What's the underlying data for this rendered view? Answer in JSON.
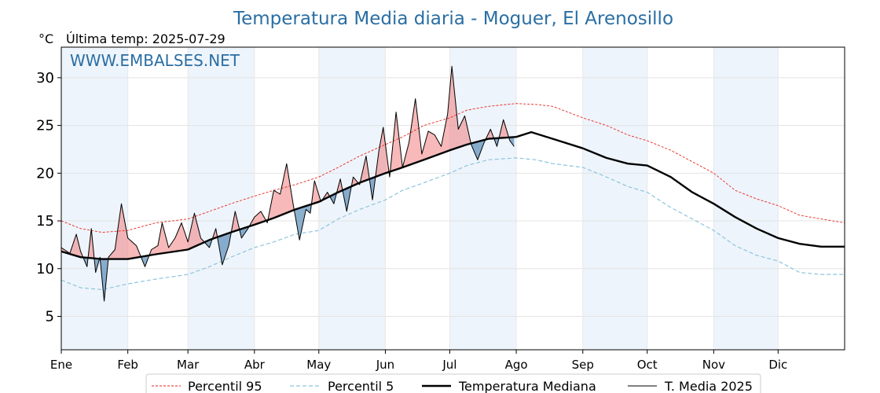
{
  "title": "Temperatura Media diaria - Moguer, El Arenosillo",
  "unit_label": "°C",
  "subtitle": "Última temp: 2025-07-29",
  "watermark": "WWW.EMBALSES.NET",
  "chart_data": {
    "type": "line",
    "title": "Temperatura Media diaria - Moguer, El Arenosillo",
    "xlabel": "",
    "ylabel": "°C",
    "ylim": [
      1.5,
      33.2
    ],
    "xlim": [
      1,
      366
    ],
    "yticks": [
      5,
      10,
      15,
      20,
      25,
      30
    ],
    "xticks": [
      {
        "day": 1,
        "label": "Ene"
      },
      {
        "day": 32,
        "label": "Feb"
      },
      {
        "day": 60,
        "label": "Mar"
      },
      {
        "day": 91,
        "label": "Abr"
      },
      {
        "day": 121,
        "label": "May"
      },
      {
        "day": 152,
        "label": "Jun"
      },
      {
        "day": 182,
        "label": "Jul"
      },
      {
        "day": 213,
        "label": "Ago"
      },
      {
        "day": 244,
        "label": "Sep"
      },
      {
        "day": 274,
        "label": "Oct"
      },
      {
        "day": 305,
        "label": "Nov"
      },
      {
        "day": 335,
        "label": "Dic"
      }
    ],
    "grid": true,
    "legend_position": "bottom",
    "colors": {
      "p95": "#e8251e",
      "p5": "#8cc5dc",
      "median": "#000000",
      "current": "#000000",
      "fill_above": "#f08080",
      "fill_below": "#4f86b3",
      "month_shade": "#eef4fb"
    },
    "series": [
      {
        "name": "Percentil 95",
        "key": "p95",
        "points": [
          [
            1,
            15.0
          ],
          [
            10,
            14.2
          ],
          [
            20,
            13.8
          ],
          [
            32,
            14.0
          ],
          [
            45,
            14.8
          ],
          [
            60,
            15.2
          ],
          [
            70,
            16.0
          ],
          [
            80,
            16.8
          ],
          [
            91,
            17.6
          ],
          [
            100,
            18.2
          ],
          [
            110,
            18.8
          ],
          [
            121,
            19.6
          ],
          [
            130,
            20.6
          ],
          [
            140,
            21.8
          ],
          [
            152,
            23.0
          ],
          [
            160,
            23.8
          ],
          [
            170,
            25.0
          ],
          [
            182,
            25.8
          ],
          [
            190,
            26.6
          ],
          [
            200,
            27.0
          ],
          [
            213,
            27.3
          ],
          [
            222,
            27.2
          ],
          [
            230,
            27.0
          ],
          [
            244,
            25.8
          ],
          [
            255,
            25.0
          ],
          [
            265,
            24.0
          ],
          [
            274,
            23.4
          ],
          [
            285,
            22.4
          ],
          [
            295,
            21.2
          ],
          [
            305,
            20.0
          ],
          [
            315,
            18.2
          ],
          [
            325,
            17.3
          ],
          [
            335,
            16.6
          ],
          [
            345,
            15.6
          ],
          [
            355,
            15.2
          ],
          [
            366,
            14.8
          ]
        ]
      },
      {
        "name": "Percentil 5",
        "key": "p5",
        "points": [
          [
            1,
            8.8
          ],
          [
            10,
            8.0
          ],
          [
            20,
            7.8
          ],
          [
            32,
            8.4
          ],
          [
            45,
            8.9
          ],
          [
            60,
            9.4
          ],
          [
            70,
            10.2
          ],
          [
            80,
            11.2
          ],
          [
            91,
            12.2
          ],
          [
            100,
            12.8
          ],
          [
            110,
            13.6
          ],
          [
            121,
            14.0
          ],
          [
            130,
            15.2
          ],
          [
            140,
            16.2
          ],
          [
            152,
            17.2
          ],
          [
            160,
            18.2
          ],
          [
            170,
            19.0
          ],
          [
            182,
            20.0
          ],
          [
            190,
            20.8
          ],
          [
            200,
            21.4
          ],
          [
            213,
            21.6
          ],
          [
            222,
            21.4
          ],
          [
            230,
            21.0
          ],
          [
            244,
            20.6
          ],
          [
            255,
            19.6
          ],
          [
            265,
            18.6
          ],
          [
            274,
            18.0
          ],
          [
            285,
            16.4
          ],
          [
            295,
            15.2
          ],
          [
            305,
            14.0
          ],
          [
            315,
            12.4
          ],
          [
            325,
            11.4
          ],
          [
            335,
            10.8
          ],
          [
            345,
            9.6
          ],
          [
            355,
            9.4
          ],
          [
            366,
            9.4
          ]
        ]
      },
      {
        "name": "Temperatura Mediana",
        "key": "median",
        "points": [
          [
            1,
            11.8
          ],
          [
            10,
            11.2
          ],
          [
            20,
            11.0
          ],
          [
            32,
            11.0
          ],
          [
            45,
            11.5
          ],
          [
            60,
            12.0
          ],
          [
            70,
            13.0
          ],
          [
            80,
            13.8
          ],
          [
            91,
            14.6
          ],
          [
            100,
            15.3
          ],
          [
            110,
            16.2
          ],
          [
            121,
            17.0
          ],
          [
            130,
            18.0
          ],
          [
            140,
            19.0
          ],
          [
            152,
            20.0
          ],
          [
            160,
            20.6
          ],
          [
            170,
            21.4
          ],
          [
            182,
            22.4
          ],
          [
            190,
            23.0
          ],
          [
            200,
            23.6
          ],
          [
            213,
            23.8
          ],
          [
            220,
            24.3
          ],
          [
            230,
            23.6
          ],
          [
            244,
            22.6
          ],
          [
            255,
            21.6
          ],
          [
            265,
            21.0
          ],
          [
            274,
            20.8
          ],
          [
            285,
            19.6
          ],
          [
            295,
            18.0
          ],
          [
            305,
            16.8
          ],
          [
            315,
            15.4
          ],
          [
            325,
            14.2
          ],
          [
            335,
            13.2
          ],
          [
            345,
            12.6
          ],
          [
            355,
            12.3
          ],
          [
            366,
            12.3
          ]
        ]
      },
      {
        "name": "T. Media 2025",
        "key": "current",
        "points": [
          [
            1,
            12.2
          ],
          [
            5,
            11.6
          ],
          [
            8,
            13.6
          ],
          [
            10,
            11.8
          ],
          [
            13,
            10.2
          ],
          [
            15,
            14.2
          ],
          [
            17,
            9.6
          ],
          [
            19,
            11.2
          ],
          [
            21,
            6.6
          ],
          [
            23,
            11.2
          ],
          [
            26,
            12.0
          ],
          [
            29,
            16.8
          ],
          [
            32,
            13.2
          ],
          [
            36,
            12.4
          ],
          [
            40,
            10.2
          ],
          [
            43,
            12.0
          ],
          [
            46,
            12.4
          ],
          [
            48,
            14.8
          ],
          [
            51,
            12.2
          ],
          [
            54,
            13.2
          ],
          [
            57,
            14.8
          ],
          [
            60,
            12.8
          ],
          [
            63,
            15.8
          ],
          [
            66,
            13.2
          ],
          [
            70,
            12.2
          ],
          [
            73,
            14.2
          ],
          [
            76,
            10.4
          ],
          [
            79,
            12.4
          ],
          [
            82,
            16.0
          ],
          [
            85,
            13.2
          ],
          [
            88,
            14.2
          ],
          [
            91,
            15.4
          ],
          [
            94,
            16.0
          ],
          [
            97,
            14.8
          ],
          [
            100,
            18.2
          ],
          [
            103,
            17.8
          ],
          [
            106,
            21.0
          ],
          [
            109,
            16.8
          ],
          [
            112,
            13.0
          ],
          [
            115,
            16.2
          ],
          [
            117,
            15.8
          ],
          [
            119,
            19.2
          ],
          [
            122,
            17.0
          ],
          [
            125,
            18.0
          ],
          [
            128,
            16.8
          ],
          [
            131,
            19.4
          ],
          [
            134,
            16.0
          ],
          [
            137,
            19.6
          ],
          [
            140,
            18.8
          ],
          [
            143,
            21.8
          ],
          [
            146,
            17.2
          ],
          [
            149,
            22.4
          ],
          [
            151,
            24.8
          ],
          [
            154,
            19.6
          ],
          [
            157,
            26.4
          ],
          [
            160,
            20.6
          ],
          [
            163,
            23.2
          ],
          [
            166,
            27.8
          ],
          [
            169,
            22.0
          ],
          [
            172,
            24.4
          ],
          [
            175,
            24.0
          ],
          [
            178,
            22.8
          ],
          [
            181,
            26.2
          ],
          [
            183,
            31.2
          ],
          [
            186,
            24.6
          ],
          [
            189,
            26.0
          ],
          [
            192,
            23.0
          ],
          [
            195,
            21.4
          ],
          [
            198,
            23.2
          ],
          [
            201,
            24.6
          ],
          [
            204,
            22.8
          ],
          [
            207,
            25.6
          ],
          [
            210,
            23.4
          ],
          [
            212,
            22.8
          ]
        ]
      }
    ]
  },
  "legend": {
    "p95": "Percentil 95",
    "p5": "Percentil 5",
    "median": "Temperatura Mediana",
    "current": "T. Media 2025"
  }
}
